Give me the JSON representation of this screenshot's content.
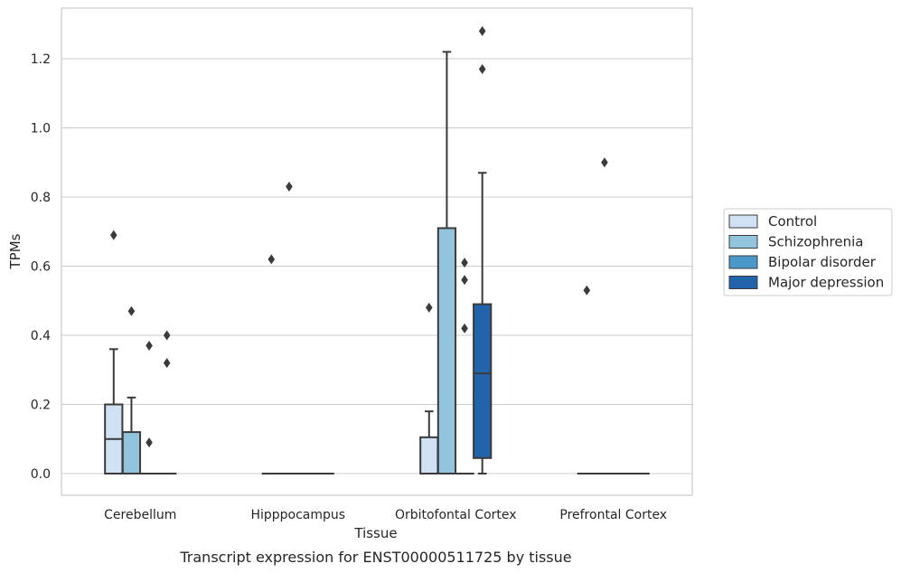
{
  "chart_data": {
    "type": "box",
    "title": "",
    "caption": "Transcript expression for ENST00000511725 by tissue",
    "xlabel": "Tissue",
    "ylabel": "TPMs",
    "ylim": [
      -0.063,
      1.35
    ],
    "yticks": [
      "0.0",
      "0.2",
      "0.4",
      "0.6",
      "0.8",
      "1.0",
      "1.2"
    ],
    "ytick_values": [
      0.0,
      0.2,
      0.4,
      0.6,
      0.8,
      1.0,
      1.2
    ],
    "grid": "horizontal",
    "legend_position": "right",
    "categories": [
      "Cerebellum",
      "Hipppocampus",
      "Orbitofontal Cortex",
      "Prefrontal Cortex"
    ],
    "series": [
      {
        "name": "Control",
        "color": "#cfe1f2",
        "boxes": [
          {
            "q1": 0,
            "median": 0.1,
            "q3": 0.2,
            "whisker_low": 0,
            "whisker_high": 0.36,
            "outliers": [
              0.69
            ]
          },
          {
            "q1": 0,
            "median": 0,
            "q3": 0,
            "whisker_low": 0,
            "whisker_high": 0,
            "outliers": [
              0.62
            ]
          },
          {
            "q1": 0,
            "median": 0,
            "q3": 0.105,
            "whisker_low": 0,
            "whisker_high": 0.18,
            "outliers": [
              0.48
            ]
          },
          {
            "q1": 0,
            "median": 0,
            "q3": 0,
            "whisker_low": 0,
            "whisker_high": 0,
            "outliers": [
              0.53
            ]
          }
        ]
      },
      {
        "name": "Schizophrenia",
        "color": "#93c4de",
        "boxes": [
          {
            "q1": 0,
            "median": 0,
            "q3": 0.12,
            "whisker_low": 0,
            "whisker_high": 0.22,
            "outliers": [
              0.47
            ]
          },
          {
            "q1": 0,
            "median": 0,
            "q3": 0,
            "whisker_low": 0,
            "whisker_high": 0,
            "outliers": [
              0.83
            ]
          },
          {
            "q1": 0,
            "median": 0,
            "q3": 0.71,
            "whisker_low": 0,
            "whisker_high": 1.22,
            "outliers": []
          },
          {
            "q1": 0,
            "median": 0,
            "q3": 0,
            "whisker_low": 0,
            "whisker_high": 0,
            "outliers": [
              0.9
            ]
          }
        ]
      },
      {
        "name": "Bipolar disorder",
        "color": "#4a98c9",
        "boxes": [
          {
            "q1": 0,
            "median": 0,
            "q3": 0,
            "whisker_low": 0,
            "whisker_high": 0,
            "outliers": [
              0.37,
              0.09
            ]
          },
          {
            "q1": 0,
            "median": 0,
            "q3": 0,
            "whisker_low": 0,
            "whisker_high": 0,
            "outliers": []
          },
          {
            "q1": 0,
            "median": 0,
            "q3": 0,
            "whisker_low": 0,
            "whisker_high": 0,
            "outliers": [
              0.61,
              0.56,
              0.42
            ]
          },
          {
            "q1": 0,
            "median": 0,
            "q3": 0,
            "whisker_low": 0,
            "whisker_high": 0,
            "outliers": []
          }
        ]
      },
      {
        "name": "Major depression",
        "color": "#2164ab",
        "boxes": [
          {
            "q1": 0,
            "median": 0,
            "q3": 0,
            "whisker_low": 0,
            "whisker_high": 0,
            "outliers": [
              0.4,
              0.32
            ]
          },
          {
            "q1": 0,
            "median": 0,
            "q3": 0,
            "whisker_low": 0,
            "whisker_high": 0,
            "outliers": []
          },
          {
            "q1": 0.045,
            "median": 0.29,
            "q3": 0.49,
            "whisker_low": 0,
            "whisker_high": 0.87,
            "outliers": [
              1.28,
              1.17
            ]
          },
          {
            "q1": 0,
            "median": 0,
            "q3": 0,
            "whisker_low": 0,
            "whisker_high": 0,
            "outliers": []
          }
        ]
      }
    ]
  }
}
